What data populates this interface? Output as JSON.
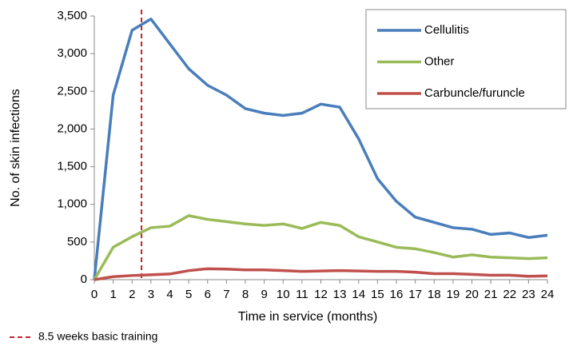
{
  "chart_data": {
    "type": "line",
    "x_label": "Time in service (months)",
    "y_label": "No. of skin infections",
    "x": [
      0,
      1,
      2,
      3,
      4,
      5,
      6,
      7,
      8,
      9,
      10,
      11,
      12,
      13,
      14,
      15,
      16,
      17,
      18,
      19,
      20,
      21,
      22,
      23,
      24
    ],
    "series": [
      {
        "name": "Cellulitis",
        "color": "#4a7ebb",
        "values": [
          0,
          2450,
          3310,
          3460,
          3130,
          2800,
          2580,
          2450,
          2270,
          2210,
          2180,
          2210,
          2330,
          2290,
          1870,
          1340,
          1040,
          830,
          760,
          690,
          670,
          600,
          620,
          560,
          590
        ]
      },
      {
        "name": "Other",
        "color": "#9bbb59",
        "values": [
          0,
          430,
          570,
          690,
          710,
          850,
          800,
          770,
          740,
          720,
          740,
          680,
          760,
          720,
          570,
          500,
          430,
          410,
          360,
          300,
          330,
          300,
          290,
          280,
          290
        ]
      },
      {
        "name": "Carbuncle/furuncle",
        "color": "#c0504d",
        "values": [
          0,
          40,
          55,
          65,
          75,
          120,
          145,
          140,
          130,
          130,
          120,
          110,
          115,
          120,
          115,
          110,
          110,
          100,
          80,
          80,
          70,
          60,
          60,
          45,
          50
        ]
      }
    ],
    "reference_line": {
      "x": 2.5,
      "label": "8.5 weeks basic training",
      "color": "#c0272d"
    },
    "xlim": [
      0,
      24
    ],
    "xticks": [
      0,
      1,
      2,
      3,
      4,
      5,
      6,
      7,
      8,
      9,
      10,
      11,
      12,
      13,
      14,
      15,
      16,
      17,
      18,
      19,
      20,
      21,
      22,
      23,
      24
    ],
    "ylim": [
      0,
      3500
    ],
    "yticks": [
      0,
      500,
      {
        "value": 1000,
        "label": "1,000"
      },
      {
        "value": 1500,
        "label": "1,500"
      },
      {
        "value": 2000,
        "label": "2,000"
      },
      {
        "value": 2500,
        "label": "2,500"
      },
      {
        "value": 3000,
        "label": "3,000"
      },
      {
        "value": 3500,
        "label": "3,500"
      }
    ],
    "grid": false,
    "legend": "top-right"
  }
}
